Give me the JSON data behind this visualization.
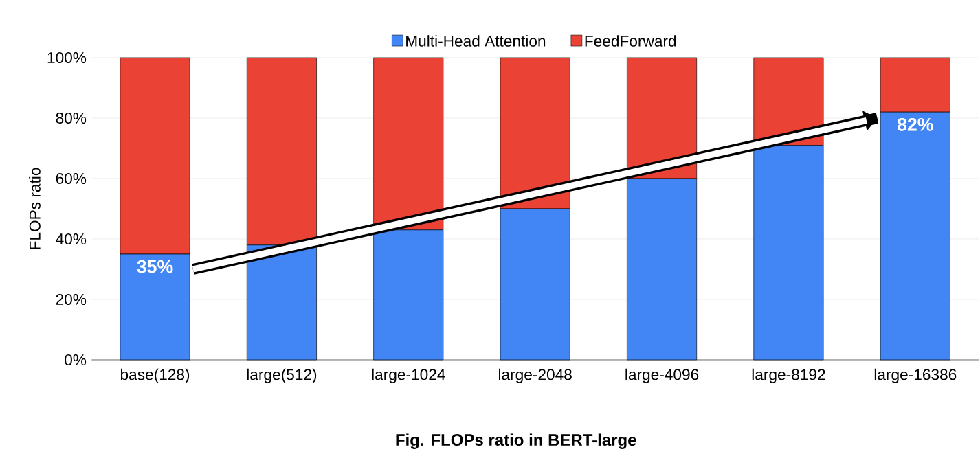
{
  "chart_data": {
    "type": "bar",
    "stacked": true,
    "title": "Fig. FLOPs ratio in BERT-large",
    "ylabel": "FLOPs ratio",
    "categories": [
      "base(128)",
      "large(512)",
      "large-1024",
      "large-2048",
      "large-4096",
      "large-8192",
      "large-16386"
    ],
    "series": [
      {
        "name": "Multi-Head Attention",
        "color": "#4285f4",
        "values": [
          35,
          38,
          43,
          50,
          60,
          71,
          82
        ],
        "value_labels": [
          "35%",
          null,
          null,
          null,
          null,
          null,
          "82%"
        ]
      },
      {
        "name": "FeedForward",
        "color": "#ea4335",
        "values": [
          65,
          62,
          57,
          50,
          40,
          29,
          18
        ]
      }
    ],
    "ylim": [
      0,
      100
    ],
    "yticks": [
      {
        "value": 0,
        "label": "0%"
      },
      {
        "value": 20,
        "label": "20%"
      },
      {
        "value": 40,
        "label": "40%"
      },
      {
        "value": 60,
        "label": "60%"
      },
      {
        "value": 80,
        "label": "80%"
      },
      {
        "value": 100,
        "label": "100%"
      }
    ],
    "grid": "y",
    "legend": "top"
  }
}
